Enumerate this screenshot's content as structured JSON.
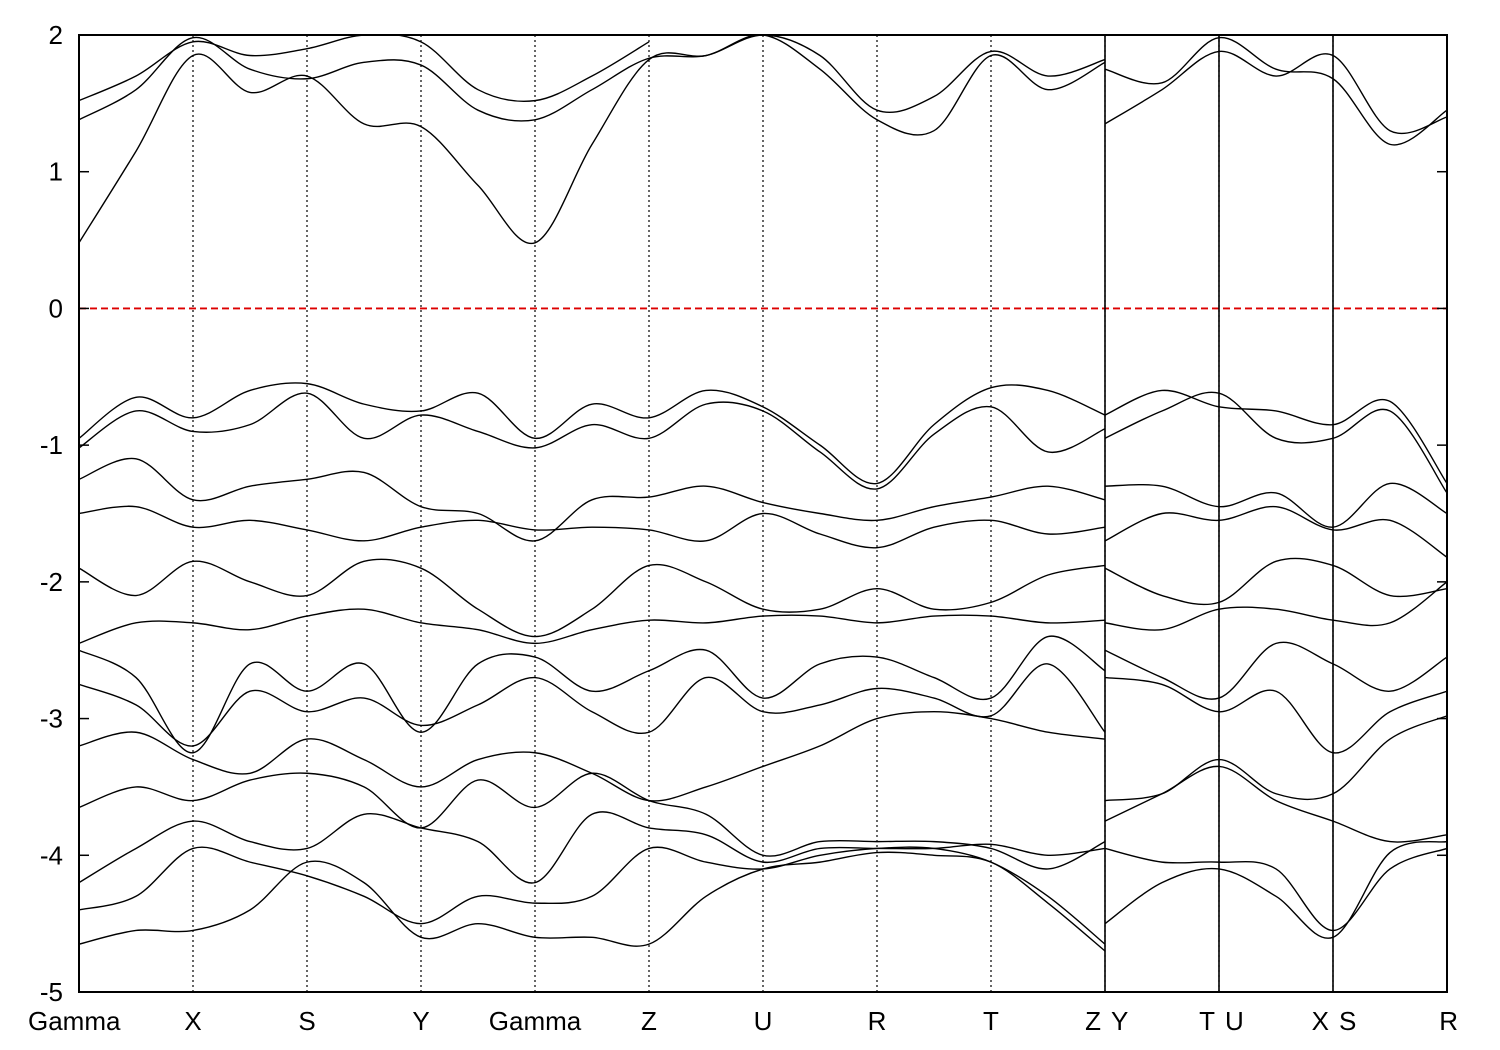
{
  "chart_data": {
    "type": "line",
    "title": "",
    "xlabel": "",
    "ylabel": "",
    "ylim": [
      -5,
      2
    ],
    "yticks": [
      "2",
      "1",
      "0",
      "-1",
      "-2",
      "-3",
      "-4",
      "-5"
    ],
    "ytick_values": [
      2,
      1,
      0,
      -1,
      -2,
      -3,
      -4,
      -5
    ],
    "kpath": [
      {
        "label": "Gamma",
        "x": 0.0
      },
      {
        "label": "X",
        "x": 0.5
      },
      {
        "label": "S",
        "x": 1.0
      },
      {
        "label": "Y",
        "x": 1.5
      },
      {
        "label": "Gamma",
        "x": 2.0
      },
      {
        "label": "Z",
        "x": 2.5
      },
      {
        "label": "U",
        "x": 3.0
      },
      {
        "label": "R",
        "x": 3.5
      },
      {
        "label": "T",
        "x": 4.0
      },
      {
        "label": "Z",
        "x": 4.5
      },
      {
        "label": "Y",
        "x": 4.5
      },
      {
        "label": "T",
        "x": 5.0
      },
      {
        "label": "U",
        "x": 5.0
      },
      {
        "label": "X",
        "x": 5.5
      },
      {
        "label": "S",
        "x": 5.5
      },
      {
        "label": "R",
        "x": 6.0
      }
    ],
    "path_breaks": [
      4.5,
      5.0,
      5.5
    ],
    "xlim": [
      0,
      6.0
    ],
    "fermi_level": 0,
    "grid": "vertical dotted lines at k-points",
    "colors": {
      "bands": "#000000",
      "fermi": "#dd0000"
    },
    "series": [
      {
        "x": [
          0,
          0.25,
          0.5,
          0.75,
          1.0,
          1.25,
          1.5,
          1.75,
          2.0,
          2.25,
          2.5,
          2.75,
          3.0,
          3.25,
          3.5,
          3.75,
          4.0,
          4.25,
          4.5
        ],
        "values": [
          0.48,
          1.15,
          1.85,
          1.58,
          1.7,
          1.35,
          1.33,
          0.9,
          0.48,
          1.2,
          1.82,
          1.85,
          2.0,
          1.85,
          1.45,
          1.55,
          1.88,
          1.7,
          1.82
        ]
      },
      {
        "x": [
          0,
          0.25,
          0.5,
          0.75,
          1.0,
          1.25,
          1.5,
          1.75,
          2.0,
          2.25,
          2.5,
          2.75,
          3.0,
          3.25,
          3.5,
          3.75,
          4.0,
          4.25,
          4.5
        ],
        "values": [
          1.38,
          1.6,
          1.98,
          1.75,
          1.68,
          1.8,
          1.78,
          1.45,
          1.38,
          1.6,
          1.83,
          1.85,
          2.0,
          1.75,
          1.38,
          1.3,
          1.85,
          1.6,
          1.8
        ]
      },
      {
        "x": [
          0,
          0.25,
          0.5,
          0.75,
          1.0,
          1.25,
          1.5,
          1.75,
          2.0,
          2.25,
          2.5
        ],
        "values": [
          1.52,
          1.7,
          1.95,
          1.85,
          1.9,
          2.0,
          1.95,
          1.6,
          1.52,
          1.7,
          1.95
        ]
      },
      {
        "x": [
          4.5,
          4.75,
          5.0,
          5.25,
          5.5,
          5.75,
          6.0
        ],
        "values": [
          1.35,
          1.6,
          1.88,
          1.7,
          1.85,
          1.3,
          1.4
        ]
      },
      {
        "x": [
          4.5,
          4.75,
          5.0,
          5.25,
          5.5,
          5.75,
          6.0
        ],
        "values": [
          1.75,
          1.65,
          1.98,
          1.75,
          1.68,
          1.2,
          1.45
        ]
      },
      {
        "x": [
          0,
          0.25,
          0.5,
          0.75,
          1.0,
          1.25,
          1.5,
          1.75,
          2.0,
          2.25,
          2.5,
          2.75,
          3.0,
          3.25,
          3.5,
          3.75,
          4.0,
          4.25,
          4.5
        ],
        "values": [
          -0.95,
          -0.65,
          -0.8,
          -0.6,
          -0.55,
          -0.7,
          -0.75,
          -0.62,
          -0.95,
          -0.7,
          -0.8,
          -0.6,
          -0.72,
          -1.0,
          -1.28,
          -0.85,
          -0.58,
          -0.6,
          -0.78
        ]
      },
      {
        "x": [
          0,
          0.25,
          0.5,
          0.75,
          1.0,
          1.25,
          1.5,
          1.75,
          2.0,
          2.25,
          2.5,
          2.75,
          3.0,
          3.25,
          3.5,
          3.75,
          4.0,
          4.25,
          4.5
        ],
        "values": [
          -1.02,
          -0.75,
          -0.9,
          -0.85,
          -0.62,
          -0.95,
          -0.78,
          -0.9,
          -1.02,
          -0.85,
          -0.95,
          -0.7,
          -0.75,
          -1.05,
          -1.32,
          -0.92,
          -0.72,
          -1.05,
          -0.88
        ]
      },
      {
        "x": [
          4.5,
          4.75,
          5.0,
          5.25,
          5.5,
          5.75,
          6.0
        ],
        "values": [
          -0.78,
          -0.6,
          -0.72,
          -0.75,
          -0.85,
          -0.68,
          -1.28
        ]
      },
      {
        "x": [
          4.5,
          4.75,
          5.0,
          5.25,
          5.5,
          5.75,
          6.0
        ],
        "values": [
          -0.95,
          -0.75,
          -0.62,
          -0.95,
          -0.95,
          -0.75,
          -1.35
        ]
      },
      {
        "x": [
          0,
          0.25,
          0.5,
          0.75,
          1.0,
          1.25,
          1.5,
          1.75,
          2.0,
          2.25,
          2.5,
          2.75,
          3.0,
          3.25,
          3.5,
          3.75,
          4.0,
          4.25,
          4.5
        ],
        "values": [
          -1.25,
          -1.1,
          -1.4,
          -1.3,
          -1.25,
          -1.2,
          -1.45,
          -1.5,
          -1.7,
          -1.4,
          -1.38,
          -1.3,
          -1.42,
          -1.5,
          -1.55,
          -1.45,
          -1.38,
          -1.3,
          -1.4
        ]
      },
      {
        "x": [
          0,
          0.25,
          0.5,
          0.75,
          1.0,
          1.25,
          1.5,
          1.75,
          2.0,
          2.25,
          2.5,
          2.75,
          3.0,
          3.25,
          3.5,
          3.75,
          4.0,
          4.25,
          4.5
        ],
        "values": [
          -1.5,
          -1.45,
          -1.6,
          -1.55,
          -1.62,
          -1.7,
          -1.6,
          -1.55,
          -1.62,
          -1.6,
          -1.62,
          -1.7,
          -1.5,
          -1.65,
          -1.75,
          -1.6,
          -1.55,
          -1.65,
          -1.6
        ]
      },
      {
        "x": [
          0,
          0.25,
          0.5,
          0.75,
          1.0,
          1.25,
          1.5,
          1.75,
          2.0,
          2.25,
          2.5,
          2.75,
          3.0,
          3.25,
          3.5,
          3.75,
          4.0,
          4.25,
          4.5
        ],
        "values": [
          -1.9,
          -2.1,
          -1.85,
          -2.0,
          -2.1,
          -1.85,
          -1.9,
          -2.2,
          -2.4,
          -2.2,
          -1.88,
          -2.0,
          -2.2,
          -2.2,
          -2.05,
          -2.2,
          -2.15,
          -1.95,
          -1.88
        ]
      },
      {
        "x": [
          0,
          0.25,
          0.5,
          0.75,
          1.0,
          1.25,
          1.5,
          1.75,
          2.0,
          2.25,
          2.5,
          2.75,
          3.0,
          3.25,
          3.5,
          3.75,
          4.0,
          4.25,
          4.5
        ],
        "values": [
          -2.45,
          -2.3,
          -2.3,
          -2.35,
          -2.25,
          -2.2,
          -2.3,
          -2.35,
          -2.45,
          -2.35,
          -2.28,
          -2.3,
          -2.25,
          -2.25,
          -2.3,
          -2.25,
          -2.25,
          -2.3,
          -2.28
        ]
      },
      {
        "x": [
          4.5,
          4.75,
          5.0,
          5.25,
          5.5,
          5.75,
          6.0
        ],
        "values": [
          -1.3,
          -1.3,
          -1.45,
          -1.35,
          -1.6,
          -1.28,
          -1.5
        ]
      },
      {
        "x": [
          4.5,
          4.75,
          5.0,
          5.25,
          5.5,
          5.75,
          6.0
        ],
        "values": [
          -1.7,
          -1.5,
          -1.55,
          -1.45,
          -1.62,
          -1.55,
          -1.82
        ]
      },
      {
        "x": [
          4.5,
          4.75,
          5.0,
          5.25,
          5.5,
          5.75,
          6.0
        ],
        "values": [
          -1.9,
          -2.1,
          -2.15,
          -1.85,
          -1.88,
          -2.1,
          -2.05
        ]
      },
      {
        "x": [
          4.5,
          4.75,
          5.0,
          5.25,
          5.5,
          5.75,
          6.0
        ],
        "values": [
          -2.3,
          -2.35,
          -2.2,
          -2.2,
          -2.28,
          -2.3,
          -2.0
        ]
      },
      {
        "x": [
          0,
          0.25,
          0.5,
          0.75,
          1.0,
          1.25,
          1.5,
          1.75,
          2.0,
          2.25,
          2.5,
          2.75,
          3.0,
          3.25,
          3.5,
          3.75,
          4.0,
          4.25,
          4.5
        ],
        "values": [
          -2.5,
          -2.7,
          -3.25,
          -2.6,
          -2.8,
          -2.6,
          -3.1,
          -2.6,
          -2.55,
          -2.8,
          -2.65,
          -2.5,
          -2.85,
          -2.6,
          -2.55,
          -2.7,
          -2.85,
          -2.4,
          -2.65
        ]
      },
      {
        "x": [
          0,
          0.25,
          0.5,
          0.75,
          1.0,
          1.25,
          1.5,
          1.75,
          2.0,
          2.25,
          2.5,
          2.75,
          3.0,
          3.25,
          3.5,
          3.75,
          4.0,
          4.25,
          4.5
        ],
        "values": [
          -2.75,
          -2.9,
          -3.2,
          -2.8,
          -2.95,
          -2.85,
          -3.05,
          -2.9,
          -2.7,
          -2.95,
          -3.1,
          -2.7,
          -2.95,
          -2.9,
          -2.78,
          -2.85,
          -2.98,
          -2.6,
          -3.1
        ]
      },
      {
        "x": [
          0,
          0.25,
          0.5,
          0.75,
          1.0,
          1.25,
          1.5,
          1.75,
          2.0,
          2.25,
          2.5,
          2.75,
          3.0,
          3.25,
          3.5,
          3.75,
          4.0,
          4.25,
          4.5
        ],
        "values": [
          -3.2,
          -3.1,
          -3.3,
          -3.4,
          -3.15,
          -3.3,
          -3.5,
          -3.3,
          -3.25,
          -3.4,
          -3.6,
          -3.5,
          -3.35,
          -3.2,
          -3.0,
          -2.95,
          -3.0,
          -3.1,
          -3.15
        ]
      },
      {
        "x": [
          4.5,
          4.75,
          5.0,
          5.25,
          5.5,
          5.75,
          6.0
        ],
        "values": [
          -2.5,
          -2.7,
          -2.85,
          -2.45,
          -2.6,
          -2.8,
          -2.55
        ]
      },
      {
        "x": [
          4.5,
          4.75,
          5.0,
          5.25,
          5.5,
          5.75,
          6.0
        ],
        "values": [
          -2.7,
          -2.75,
          -2.95,
          -2.8,
          -3.25,
          -2.95,
          -2.8
        ]
      },
      {
        "x": [
          4.5,
          4.75,
          5.0,
          5.25,
          5.5,
          5.75,
          6.0
        ],
        "values": [
          -3.6,
          -3.55,
          -3.3,
          -3.55,
          -3.55,
          -3.15,
          -2.98
        ]
      },
      {
        "x": [
          0,
          0.25,
          0.5,
          0.75,
          1.0,
          1.25,
          1.5,
          1.75,
          2.0,
          2.25,
          2.5,
          2.75,
          3.0,
          3.25,
          3.5,
          3.75,
          4.0,
          4.25,
          4.5
        ],
        "values": [
          -3.65,
          -3.5,
          -3.6,
          -3.45,
          -3.4,
          -3.5,
          -3.8,
          -3.45,
          -3.65,
          -3.4,
          -3.6,
          -3.7,
          -4.0,
          -3.9,
          -3.9,
          -3.9,
          -3.95,
          -4.1,
          -3.9
        ]
      },
      {
        "x": [
          0,
          0.25,
          0.5,
          0.75,
          1.0,
          1.25,
          1.5,
          1.75,
          2.0,
          2.25,
          2.5,
          2.75,
          3.0,
          3.25,
          3.5,
          3.75,
          4.0,
          4.25,
          4.5
        ],
        "values": [
          -4.2,
          -3.95,
          -3.75,
          -3.9,
          -3.95,
          -3.7,
          -3.8,
          -3.9,
          -4.2,
          -3.7,
          -3.8,
          -3.85,
          -4.05,
          -3.95,
          -3.95,
          -3.95,
          -3.92,
          -4.0,
          -3.95
        ]
      },
      {
        "x": [
          0,
          0.25,
          0.5,
          0.75,
          1.0,
          1.25,
          1.5,
          1.75,
          2.0,
          2.25,
          2.5,
          2.75,
          3.0,
          3.25,
          3.5,
          3.75,
          4.0,
          4.25,
          4.5
        ],
        "values": [
          -4.4,
          -4.3,
          -3.95,
          -4.05,
          -4.15,
          -4.3,
          -4.5,
          -4.3,
          -4.35,
          -4.3,
          -3.95,
          -4.05,
          -4.1,
          -4.0,
          -3.95,
          -3.95,
          -4.05,
          -4.3,
          -4.65
        ]
      },
      {
        "x": [
          0,
          0.25,
          0.5,
          0.75,
          1.0,
          1.25,
          1.5,
          1.75,
          2.0,
          2.25,
          2.5,
          2.75,
          3.0,
          3.25,
          3.5,
          3.75,
          4.0,
          4.25,
          4.5
        ],
        "values": [
          -4.65,
          -4.55,
          -4.55,
          -4.4,
          -4.05,
          -4.2,
          -4.6,
          -4.5,
          -4.6,
          -4.6,
          -4.65,
          -4.3,
          -4.1,
          -4.05,
          -3.98,
          -4.0,
          -4.05,
          -4.35,
          -4.7
        ]
      },
      {
        "x": [
          4.5,
          4.75,
          5.0,
          5.25,
          5.5,
          5.75,
          6.0
        ],
        "values": [
          -3.75,
          -3.55,
          -3.35,
          -3.6,
          -3.75,
          -3.9,
          -3.85
        ]
      },
      {
        "x": [
          4.5,
          4.75,
          5.0,
          5.25,
          5.5,
          5.75,
          6.0
        ],
        "values": [
          -3.95,
          -4.05,
          -4.05,
          -4.1,
          -4.55,
          -4.1,
          -3.95
        ]
      },
      {
        "x": [
          4.5,
          4.75,
          5.0,
          5.25,
          5.5,
          5.75,
          6.0
        ],
        "values": [
          -4.5,
          -4.2,
          -4.1,
          -4.3,
          -4.6,
          -3.98,
          -3.9
        ]
      }
    ]
  }
}
